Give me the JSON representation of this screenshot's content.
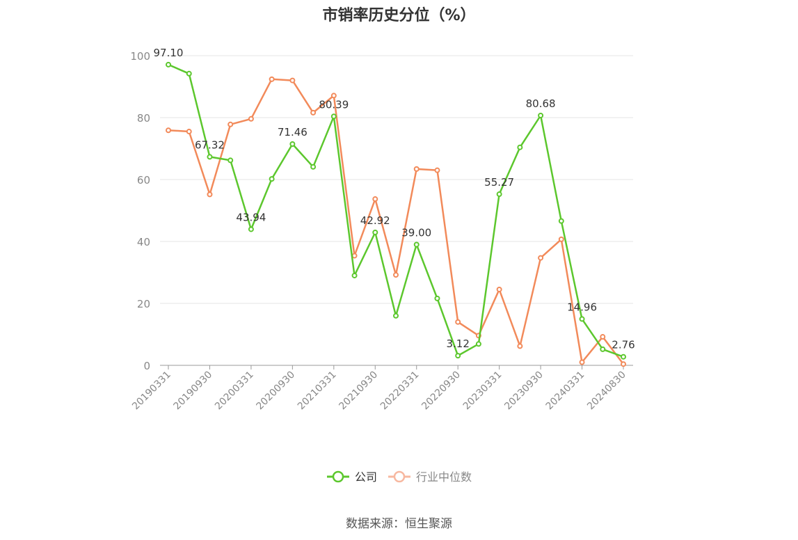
{
  "title": "市销率历史分位（%）",
  "source": "数据来源：恒生聚源",
  "colors": {
    "company": "#5cc72d",
    "industry": "#f28a5a",
    "industry_legend": "#f7b8a0",
    "grid": "#e6e6e6",
    "axis": "#999999",
    "tick_text": "#888888",
    "label_text": "#333333"
  },
  "chart_data": {
    "type": "line",
    "x": [
      "20190331",
      "20190630",
      "20190930",
      "20191231",
      "20200331",
      "20200630",
      "20200930",
      "20201231",
      "20210331",
      "20210630",
      "20210930",
      "20211231",
      "20220331",
      "20220630",
      "20220930",
      "20221231",
      "20230331",
      "20230630",
      "20230930",
      "20231231",
      "20240331",
      "20240630",
      "20240830"
    ],
    "x_tick_labels": [
      "20190331",
      "20190930",
      "20200331",
      "20200930",
      "20210331",
      "20210930",
      "20220331",
      "20220930",
      "20230331",
      "20230930",
      "20240331",
      "20240830"
    ],
    "ylim": [
      0,
      100
    ],
    "y_ticks": [
      0,
      20,
      40,
      60,
      80,
      100
    ],
    "y_tick_labels": [
      "0",
      "20",
      "40",
      "60",
      "80",
      "100"
    ],
    "grid": true,
    "legend_position": "bottom-center",
    "series": [
      {
        "name": "公司",
        "values": [
          97.1,
          94.2,
          67.32,
          66.2,
          43.94,
          60.2,
          71.46,
          64.1,
          80.39,
          29.0,
          42.92,
          16.0,
          39.0,
          21.6,
          3.12,
          6.9,
          55.27,
          70.4,
          80.68,
          46.6,
          14.96,
          5.2,
          2.76
        ],
        "data_labels": [
          {
            "index": 0,
            "text": "97.10"
          },
          {
            "index": 2,
            "text": "67.32"
          },
          {
            "index": 4,
            "text": "43.94"
          },
          {
            "index": 6,
            "text": "71.46"
          },
          {
            "index": 8,
            "text": "80.39"
          },
          {
            "index": 10,
            "text": "42.92"
          },
          {
            "index": 12,
            "text": "39.00"
          },
          {
            "index": 14,
            "text": "3.12"
          },
          {
            "index": 16,
            "text": "55.27"
          },
          {
            "index": 18,
            "text": "80.68"
          },
          {
            "index": 20,
            "text": "14.96"
          },
          {
            "index": 22,
            "text": "2.76"
          }
        ]
      },
      {
        "name": "行业中位数",
        "values": [
          75.9,
          75.5,
          55.2,
          77.8,
          79.6,
          92.4,
          92.0,
          81.6,
          87.1,
          35.4,
          53.7,
          29.2,
          63.4,
          63.0,
          14.0,
          9.6,
          24.5,
          6.2,
          34.7,
          40.7,
          1.0,
          9.2,
          0.4
        ]
      }
    ]
  }
}
